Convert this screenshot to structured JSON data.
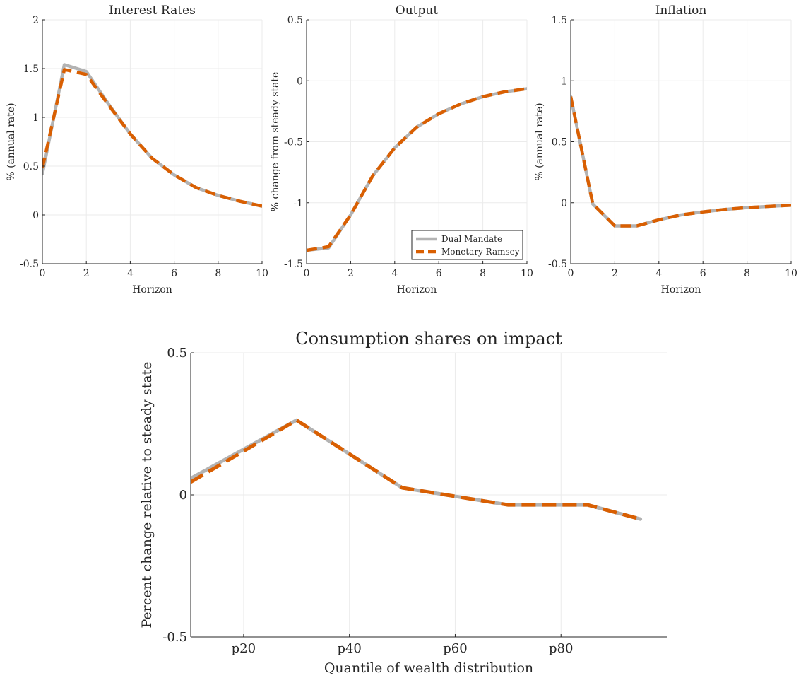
{
  "chart_data": [
    {
      "type": "line",
      "title": "Interest Rates",
      "xlabel": "Horizon",
      "ylabel": "% (annual rate)",
      "xlim": [
        0,
        10
      ],
      "ylim": [
        -0.5,
        2
      ],
      "xticks": [
        0,
        2,
        4,
        6,
        8,
        10
      ],
      "xtick_labels": [
        "0",
        "2",
        "4",
        "6",
        "8",
        "10"
      ],
      "yticks": [
        -0.5,
        0,
        0.5,
        1,
        1.5,
        2
      ],
      "ytick_labels": [
        "-0.5",
        "0",
        "0.5",
        "1",
        "1.5",
        "2"
      ],
      "grid": true,
      "x": [
        0,
        1,
        2,
        3,
        4,
        5,
        6,
        7,
        8,
        9,
        10
      ],
      "series": [
        {
          "name": "Dual Mandate",
          "color": "#b3b3b3",
          "style": "solid",
          "values": [
            0.42,
            1.54,
            1.47,
            1.14,
            0.83,
            0.58,
            0.41,
            0.28,
            0.2,
            0.14,
            0.09
          ]
        },
        {
          "name": "Monetary Ramsey",
          "color": "#d95f02",
          "style": "dashed",
          "values": [
            0.48,
            1.49,
            1.44,
            1.13,
            0.83,
            0.58,
            0.41,
            0.28,
            0.2,
            0.14,
            0.09
          ]
        }
      ]
    },
    {
      "type": "line",
      "title": "Output",
      "xlabel": "Horizon",
      "ylabel": "% change from steady state",
      "xlim": [
        0,
        10
      ],
      "ylim": [
        -1.5,
        0.5
      ],
      "xticks": [
        0,
        2,
        4,
        6,
        8,
        10
      ],
      "xtick_labels": [
        "0",
        "2",
        "4",
        "6",
        "8",
        "10"
      ],
      "yticks": [
        -1.5,
        -1,
        -0.5,
        0,
        0.5
      ],
      "ytick_labels": [
        "-1.5",
        "-1",
        "-0.5",
        "0",
        "0.5"
      ],
      "grid": true,
      "legend": {
        "position": "bottom-right",
        "entries": [
          "Dual Mandate",
          "Monetary Ramsey"
        ]
      },
      "x": [
        0,
        1,
        2,
        3,
        4,
        5,
        6,
        7,
        8,
        9,
        10
      ],
      "series": [
        {
          "name": "Dual Mandate",
          "color": "#b3b3b3",
          "style": "solid",
          "values": [
            -1.39,
            -1.37,
            -1.1,
            -0.78,
            -0.55,
            -0.38,
            -0.27,
            -0.19,
            -0.13,
            -0.09,
            -0.065
          ]
        },
        {
          "name": "Monetary Ramsey",
          "color": "#d95f02",
          "style": "dashed",
          "values": [
            -1.39,
            -1.36,
            -1.1,
            -0.78,
            -0.55,
            -0.38,
            -0.27,
            -0.19,
            -0.13,
            -0.09,
            -0.065
          ]
        }
      ]
    },
    {
      "type": "line",
      "title": "Inflation",
      "xlabel": "Horizon",
      "ylabel": "% (annual rate)",
      "xlim": [
        0,
        10
      ],
      "ylim": [
        -0.5,
        1.5
      ],
      "xticks": [
        0,
        2,
        4,
        6,
        8,
        10
      ],
      "xtick_labels": [
        "0",
        "2",
        "4",
        "6",
        "8",
        "10"
      ],
      "yticks": [
        -0.5,
        0,
        0.5,
        1,
        1.5
      ],
      "ytick_labels": [
        "-0.5",
        "0",
        "0.5",
        "1",
        "1.5"
      ],
      "grid": true,
      "x": [
        0,
        1,
        2,
        3,
        4,
        5,
        6,
        7,
        8,
        9,
        10
      ],
      "series": [
        {
          "name": "Dual Mandate",
          "color": "#b3b3b3",
          "style": "solid",
          "values": [
            0.87,
            -0.01,
            -0.19,
            -0.19,
            -0.14,
            -0.1,
            -0.075,
            -0.055,
            -0.04,
            -0.03,
            -0.02
          ]
        },
        {
          "name": "Monetary Ramsey",
          "color": "#d95f02",
          "style": "dashed",
          "values": [
            0.87,
            -0.01,
            -0.19,
            -0.19,
            -0.14,
            -0.1,
            -0.075,
            -0.055,
            -0.04,
            -0.03,
            -0.02
          ]
        }
      ]
    },
    {
      "type": "line",
      "title": "Consumption shares on impact",
      "xlabel": "Quantile of wealth distribution",
      "ylabel": "Percent change relative to steady state",
      "xlim": [
        10,
        100
      ],
      "ylim": [
        -0.5,
        0.5
      ],
      "xticks": [
        20,
        40,
        60,
        80
      ],
      "xtick_labels": [
        "p20",
        "p40",
        "p60",
        "p80"
      ],
      "yticks": [
        -0.5,
        0,
        0.5
      ],
      "ytick_labels": [
        "-0.5",
        "0",
        "0.5"
      ],
      "grid": true,
      "x": [
        10,
        30,
        50,
        70,
        85,
        95
      ],
      "series": [
        {
          "name": "Dual Mandate",
          "color": "#b3b3b3",
          "style": "solid",
          "values": [
            0.058,
            0.263,
            0.025,
            -0.035,
            -0.035,
            -0.085
          ]
        },
        {
          "name": "Monetary Ramsey",
          "color": "#d95f02",
          "style": "dashed",
          "values": [
            0.045,
            0.263,
            0.025,
            -0.035,
            -0.035,
            -0.085
          ]
        }
      ]
    }
  ]
}
